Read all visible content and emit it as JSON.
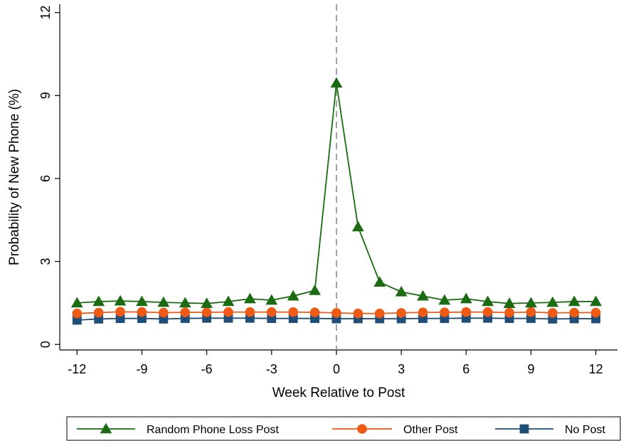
{
  "chart_data": {
    "type": "line",
    "title": "",
    "xlabel": "Week Relative to Post",
    "ylabel": "Probability of New Phone (%)",
    "xlim": [
      -12.8,
      13.0
    ],
    "ylim": [
      -0.2,
      12.3
    ],
    "xticks": [
      -12,
      -9,
      -6,
      -3,
      0,
      3,
      6,
      9,
      12
    ],
    "xtick_labels": [
      "-12",
      "-9",
      "-6",
      "-3",
      "0",
      "3",
      "6",
      "9",
      "12"
    ],
    "yticks": [
      0,
      3,
      6,
      9,
      12
    ],
    "ytick_labels": [
      "0",
      "3",
      "6",
      "9",
      "12"
    ],
    "reference_line": {
      "x": 0,
      "style": "dashed",
      "color": "#a0a0a0"
    },
    "grid": false,
    "legend_position": "bottom",
    "x": [
      -12,
      -11,
      -10,
      -9,
      -8,
      -7,
      -6,
      -5,
      -4,
      -3,
      -2,
      -1,
      0,
      1,
      2,
      3,
      4,
      5,
      6,
      7,
      8,
      9,
      10,
      11,
      12
    ],
    "series": [
      {
        "name": "Random Phone Loss Post",
        "color": "#1a6b12",
        "marker": "triangle",
        "values": [
          1.5,
          1.55,
          1.57,
          1.55,
          1.52,
          1.5,
          1.48,
          1.55,
          1.65,
          1.6,
          1.75,
          1.95,
          9.45,
          4.25,
          2.25,
          1.9,
          1.75,
          1.6,
          1.65,
          1.55,
          1.48,
          1.5,
          1.52,
          1.55,
          1.55
        ]
      },
      {
        "name": "Other Post",
        "color": "#ef5a14",
        "marker": "circle",
        "values": [
          1.12,
          1.15,
          1.18,
          1.17,
          1.15,
          1.16,
          1.16,
          1.17,
          1.17,
          1.17,
          1.17,
          1.16,
          1.14,
          1.12,
          1.12,
          1.14,
          1.16,
          1.16,
          1.17,
          1.17,
          1.15,
          1.17,
          1.14,
          1.15,
          1.15
        ]
      },
      {
        "name": "No Post",
        "color": "#1f4e79",
        "marker": "square",
        "values": [
          0.88,
          0.92,
          0.94,
          0.94,
          0.92,
          0.94,
          0.95,
          0.95,
          0.95,
          0.94,
          0.94,
          0.94,
          0.93,
          0.93,
          0.93,
          0.93,
          0.94,
          0.94,
          0.95,
          0.95,
          0.94,
          0.94,
          0.92,
          0.93,
          0.93
        ]
      }
    ]
  }
}
